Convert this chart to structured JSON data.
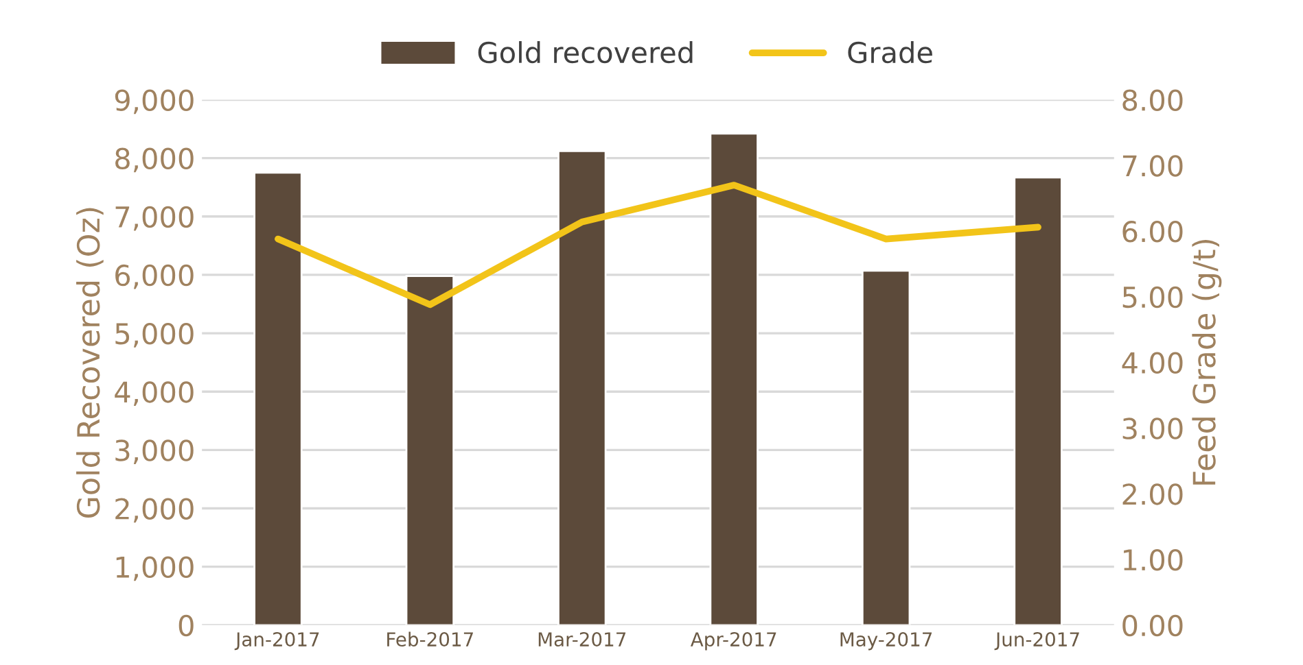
{
  "chart_data": {
    "type": "bar",
    "categories": [
      "Jan-2017",
      "Feb-2017",
      "Mar-2017",
      "Apr-2017",
      "May-2017",
      "Jun-2017"
    ],
    "series": [
      {
        "name": "Gold recovered",
        "color": "#5c4a3a",
        "values": [
          7750,
          5980,
          8120,
          8420,
          6070,
          7670
        ]
      },
      {
        "name": "Grade",
        "type": "line",
        "axis": "y2",
        "color": "#f2c419",
        "values": [
          5.88,
          4.88,
          6.14,
          6.7,
          5.88,
          6.06
        ]
      }
    ],
    "ylabel": "Gold Recovered (Oz)",
    "y2label": "Feed Grade (g/t)",
    "ylim": [
      0,
      9000
    ],
    "yticks": [
      {
        "value": 0,
        "label": "0"
      },
      {
        "value": 1000,
        "label": "1,000"
      },
      {
        "value": 2000,
        "label": "2,000"
      },
      {
        "value": 3000,
        "label": "3,000"
      },
      {
        "value": 4000,
        "label": "4,000"
      },
      {
        "value": 5000,
        "label": "5,000"
      },
      {
        "value": 6000,
        "label": "6,000"
      },
      {
        "value": 7000,
        "label": "7,000"
      },
      {
        "value": 8000,
        "label": "8,000"
      },
      {
        "value": 9000,
        "label": "9,000"
      }
    ],
    "y2lim": [
      0,
      8
    ],
    "y2ticks": [
      {
        "value": 0,
        "label": "0.00"
      },
      {
        "value": 1,
        "label": "1.00"
      },
      {
        "value": 2,
        "label": "2.00"
      },
      {
        "value": 3,
        "label": "3.00"
      },
      {
        "value": 4,
        "label": "4.00"
      },
      {
        "value": 5,
        "label": "5.00"
      },
      {
        "value": 6,
        "label": "6.00"
      },
      {
        "value": 7,
        "label": "7.00"
      },
      {
        "value": 8,
        "label": "8.00"
      }
    ],
    "grid": "y",
    "legend": "top",
    "marker": "none",
    "line_style": "solid"
  }
}
